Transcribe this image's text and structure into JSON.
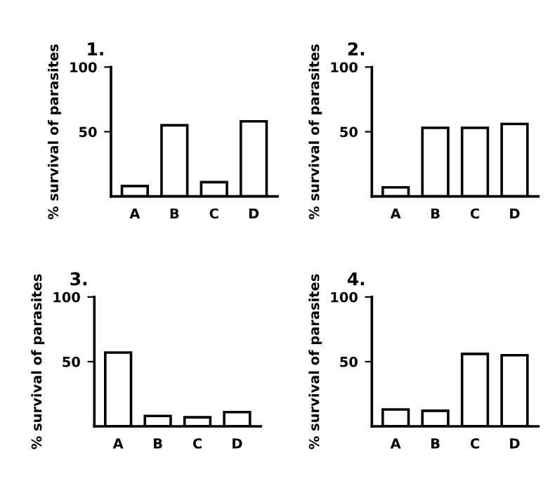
{
  "chart_data": [
    {
      "type": "bar",
      "title": "1.",
      "ylabel": "% survival of parasites",
      "categories": [
        "A",
        "B",
        "C",
        "D"
      ],
      "values": [
        8,
        55,
        11,
        58
      ],
      "color": "#ffffff",
      "ylim": [
        0,
        100
      ],
      "yticks": [
        50,
        100
      ],
      "grid": false
    },
    {
      "type": "bar",
      "title": "2.",
      "ylabel": "% survival of parasites",
      "categories": [
        "A",
        "B",
        "C",
        "D"
      ],
      "values": [
        7,
        53,
        53,
        56
      ],
      "color": "#ffffff",
      "ylim": [
        0,
        100
      ],
      "yticks": [
        50,
        100
      ],
      "grid": false
    },
    {
      "type": "bar",
      "title": "3.",
      "ylabel": "% survival of parasites",
      "categories": [
        "A",
        "B",
        "C",
        "D"
      ],
      "values": [
        57,
        8,
        7,
        11
      ],
      "color": "#ffffff",
      "ylim": [
        0,
        100
      ],
      "yticks": [
        50,
        100
      ],
      "grid": false
    },
    {
      "type": "bar",
      "title": "4.",
      "ylabel": "% survival of parasites",
      "categories": [
        "A",
        "B",
        "C",
        "D"
      ],
      "values": [
        13,
        12,
        56,
        55
      ],
      "color": "#ffffff",
      "ylim": [
        0,
        100
      ],
      "yticks": [
        50,
        100
      ],
      "grid": false
    }
  ]
}
